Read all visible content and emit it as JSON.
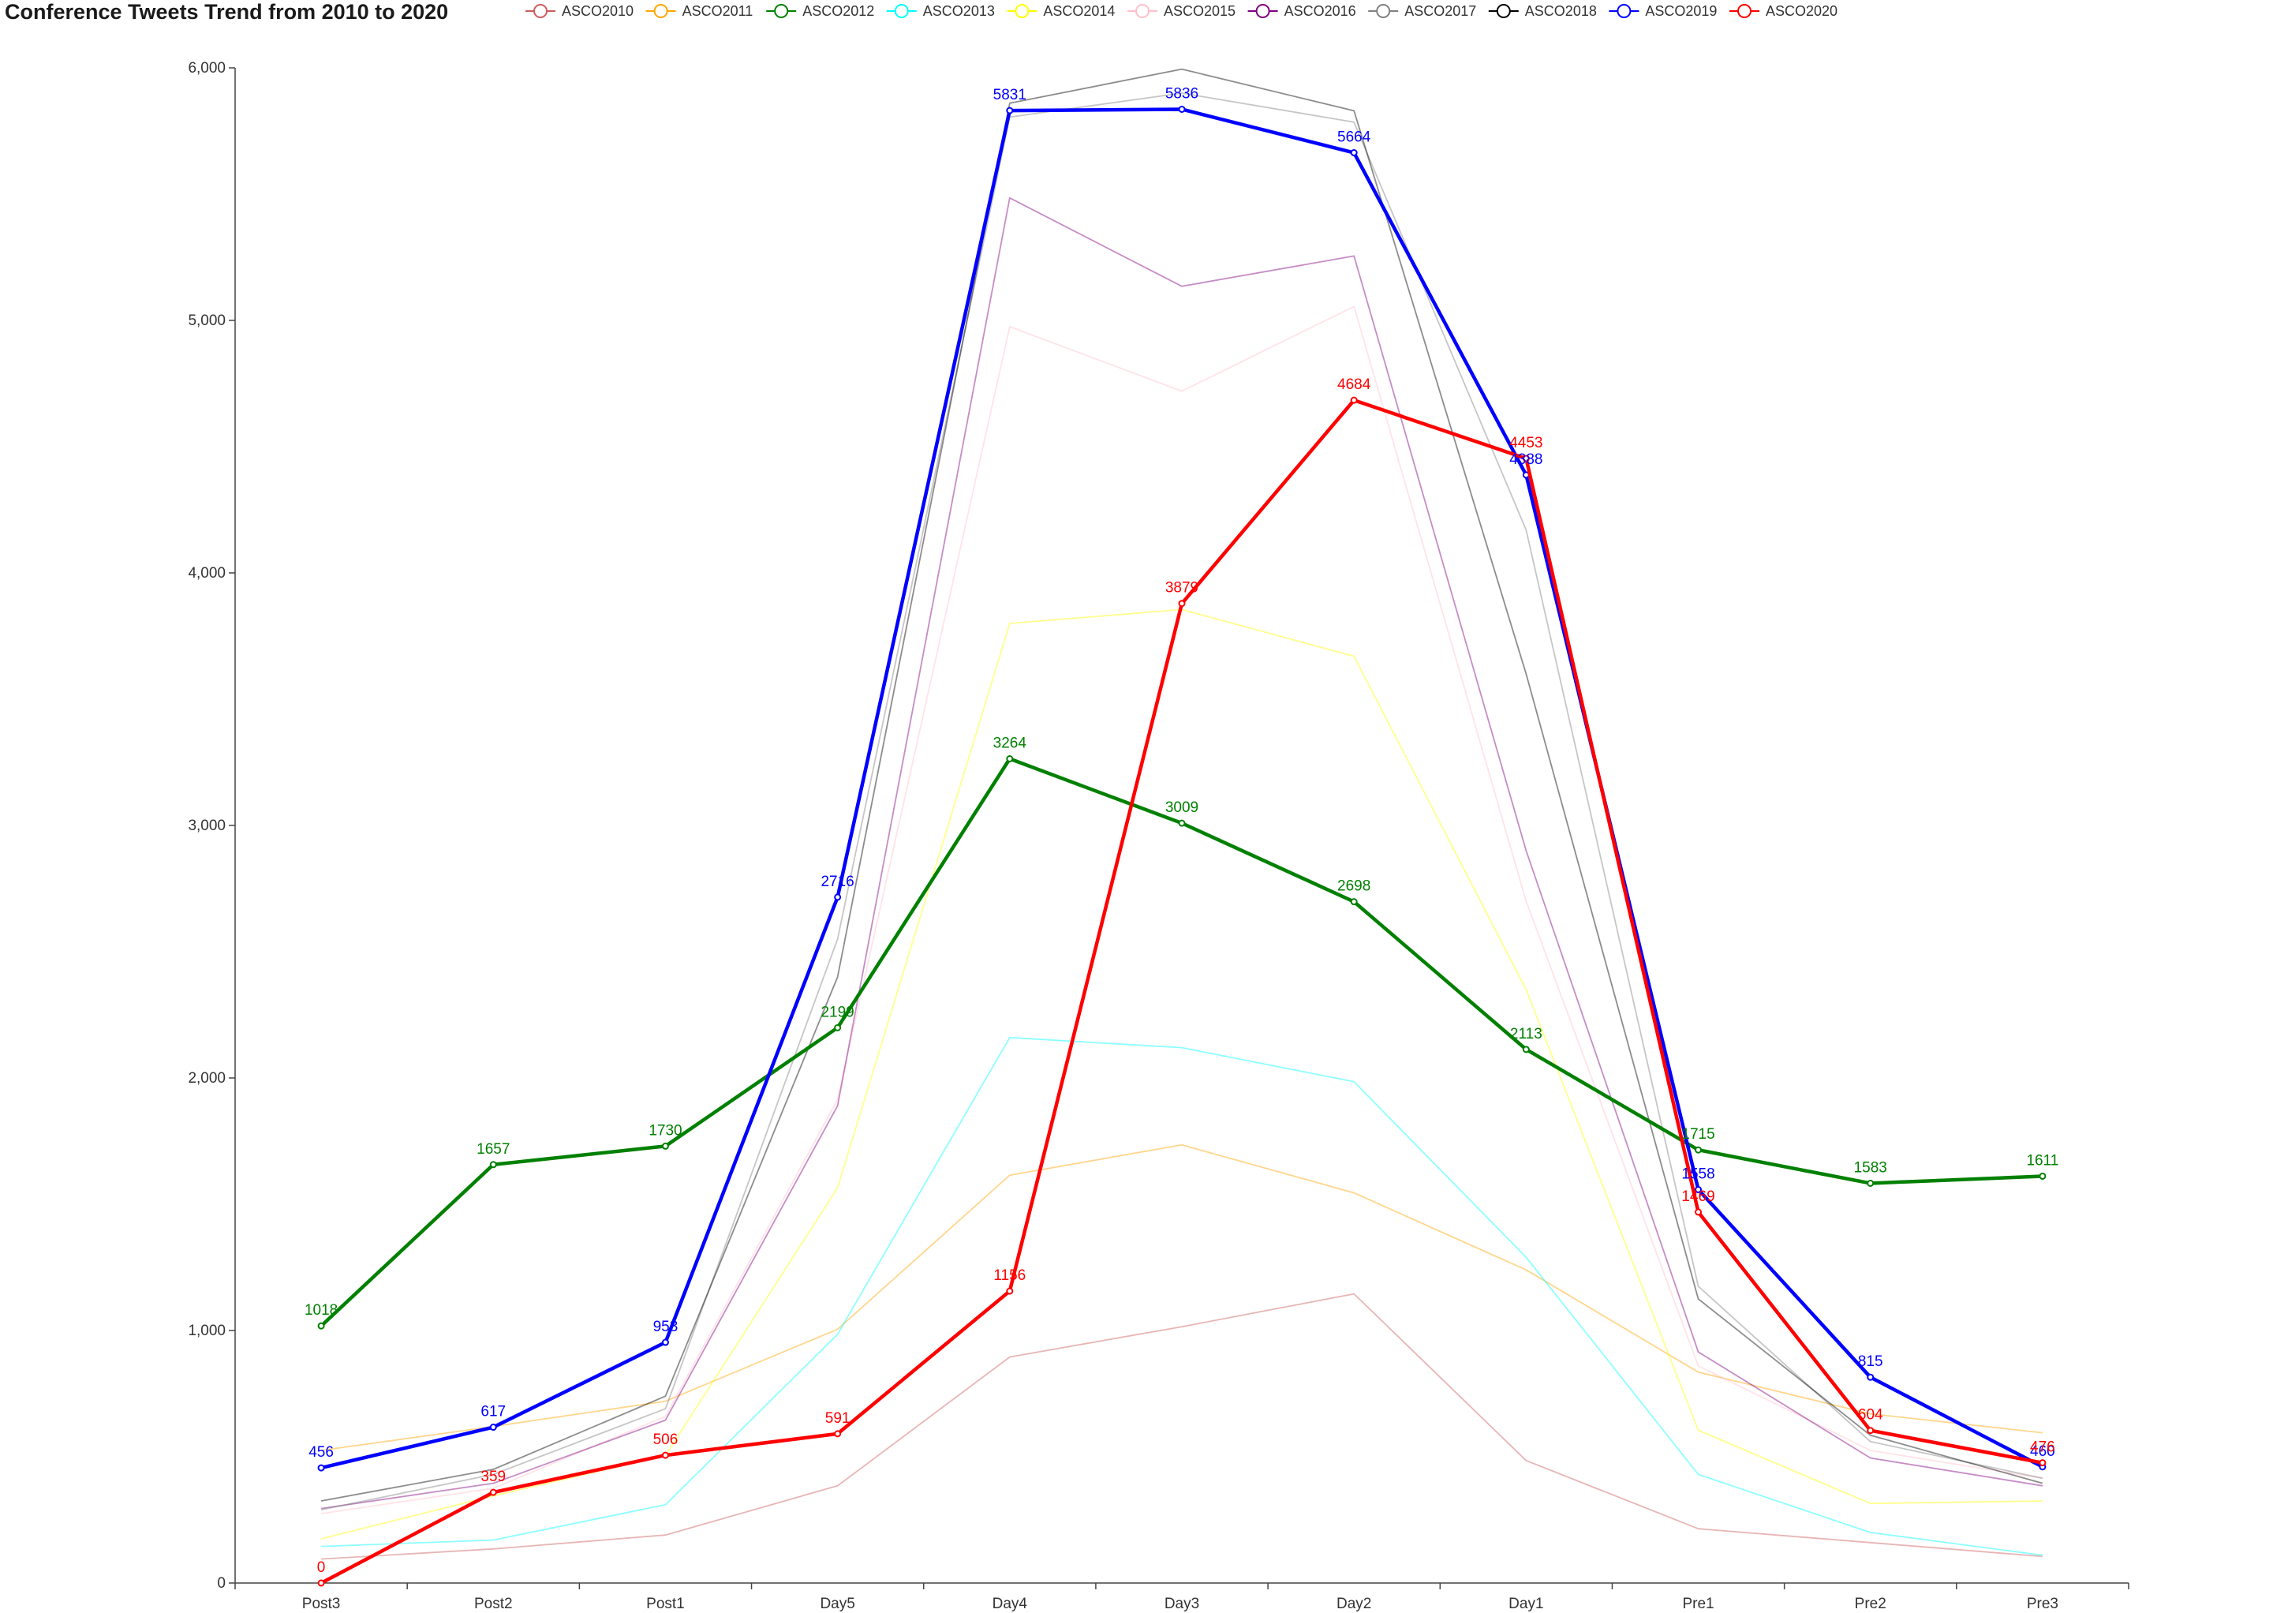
{
  "chart_data": {
    "type": "line",
    "title": "Conference Tweets Trend from 2010 to 2020",
    "xlabel": "",
    "ylabel": "",
    "categories": [
      "Post3",
      "Post2",
      "Post1",
      "Day5",
      "Day4",
      "Day3",
      "Day2",
      "Day1",
      "Pre1",
      "Pre2",
      "Pre3"
    ],
    "ylim": [
      0,
      6000
    ],
    "yticks": [
      0,
      1000,
      2000,
      3000,
      4000,
      5000,
      6000
    ],
    "ytick_labels": [
      "0",
      "1,000",
      "2,000",
      "3,000",
      "4,000",
      "5,000",
      "6,000"
    ],
    "legend_position": "top",
    "grid": false,
    "series": [
      {
        "name": "ASCO2010",
        "color": "#cd5c5c",
        "emphasis": false,
        "show_labels": false,
        "values": [
          95,
          135,
          190,
          385,
          895,
          1015,
          1145,
          485,
          215,
          160,
          105
        ]
      },
      {
        "name": "ASCO2011",
        "color": "#ffa500",
        "emphasis": false,
        "show_labels": false,
        "values": [
          525,
          620,
          720,
          1005,
          1615,
          1735,
          1545,
          1240,
          835,
          670,
          595
        ]
      },
      {
        "name": "ASCO2012",
        "color": "#008000",
        "emphasis": true,
        "show_labels": true,
        "values": [
          1018,
          1657,
          1730,
          2199,
          3264,
          3009,
          2698,
          2113,
          1715,
          1583,
          1611
        ]
      },
      {
        "name": "ASCO2013",
        "color": "#00ffff",
        "emphasis": false,
        "show_labels": false,
        "values": [
          145,
          170,
          310,
          985,
          2160,
          2120,
          1985,
          1290,
          430,
          200,
          110
        ]
      },
      {
        "name": "ASCO2014",
        "color": "#ffff00",
        "emphasis": false,
        "show_labels": false,
        "values": [
          175,
          345,
          505,
          1565,
          3800,
          3855,
          3670,
          2350,
          605,
          315,
          325
        ]
      },
      {
        "name": "ASCO2015",
        "color": "#ffc0cb",
        "emphasis": false,
        "show_labels": false,
        "values": [
          275,
          375,
          660,
          1915,
          4975,
          4720,
          5055,
          2700,
          860,
          525,
          415
        ]
      },
      {
        "name": "ASCO2016",
        "color": "#800080",
        "emphasis": false,
        "show_labels": false,
        "values": [
          295,
          395,
          645,
          1890,
          5485,
          5135,
          5255,
          2900,
          915,
          495,
          385
        ]
      },
      {
        "name": "ASCO2017",
        "color": "#808080",
        "emphasis": false,
        "show_labels": false,
        "values": [
          290,
          430,
          690,
          2550,
          5805,
          5900,
          5785,
          4170,
          1175,
          560,
          415
        ]
      },
      {
        "name": "ASCO2018",
        "color": "#000000",
        "emphasis": false,
        "show_labels": false,
        "values": [
          325,
          450,
          740,
          2400,
          5860,
          5995,
          5830,
          3600,
          1125,
          585,
          395
        ]
      },
      {
        "name": "ASCO2019",
        "color": "#0000ff",
        "emphasis": true,
        "show_labels": true,
        "values": [
          456,
          617,
          953,
          2716,
          5831,
          5836,
          5664,
          4388,
          1558,
          815,
          460
        ]
      },
      {
        "name": "ASCO2020",
        "color": "#ff0000",
        "emphasis": true,
        "show_labels": true,
        "values": [
          0,
          359,
          506,
          591,
          1156,
          3879,
          4684,
          4453,
          1469,
          604,
          476
        ]
      }
    ]
  }
}
